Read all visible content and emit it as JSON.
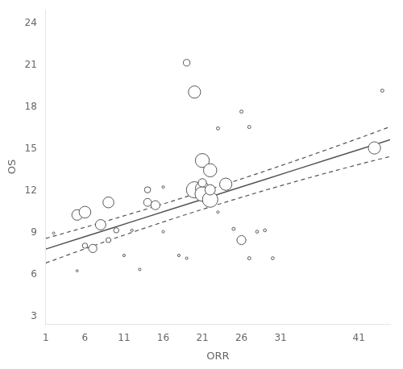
{
  "chart_data": {
    "type": "scatter",
    "xlabel": "ORR",
    "ylabel": "OS",
    "xlim": [
      1,
      45
    ],
    "ylim": [
      2.5,
      25
    ],
    "xticks": [
      1,
      6,
      11,
      16,
      21,
      26,
      31,
      41
    ],
    "yticks": [
      3,
      6,
      9,
      12,
      15,
      18,
      21,
      24
    ],
    "grid": false,
    "series": [
      {
        "type": "line",
        "line_style": "dashed",
        "color": "#555555",
        "x": [
          1,
          5,
          9,
          13,
          17,
          21,
          25,
          29,
          33,
          37,
          41,
          45
        ],
        "values": [
          8.6246,
          9.255,
          9.9046,
          10.5734,
          11.2614,
          11.9686,
          12.695,
          13.4406,
          14.2054,
          14.9894,
          15.7926,
          16.615
        ]
      },
      {
        "type": "line",
        "line_style": "dashed",
        "color": "#555555",
        "x": [
          1,
          5,
          9,
          13,
          17,
          21,
          25,
          29,
          33,
          37,
          41,
          45
        ],
        "values": [
          6.86142,
          7.6795,
          8.47262,
          9.24078,
          9.98398,
          10.70222,
          11.3955,
          12.06382,
          12.70718,
          13.32558,
          13.91902,
          14.4875
        ]
      },
      {
        "type": "line",
        "line_style": "solid",
        "color": "#555555",
        "x": [
          1,
          5,
          9,
          13,
          17,
          21,
          25,
          29,
          33,
          37,
          41,
          45
        ],
        "values": [
          7.858,
          8.57,
          9.282,
          9.994,
          10.706,
          11.418,
          12.13,
          12.842,
          13.554,
          14.266,
          14.978,
          15.69
        ]
      },
      {
        "type": "bubble",
        "marker": "hollow",
        "color": "#555555",
        "x": [
          2,
          5,
          5,
          6,
          6,
          7,
          8,
          9,
          9,
          10,
          11,
          12,
          13,
          14,
          14,
          15,
          16,
          16,
          18,
          19,
          19,
          20,
          20,
          21,
          21,
          21,
          21,
          22,
          22,
          22,
          23,
          23,
          24,
          25,
          26,
          26,
          27,
          27,
          28,
          29,
          30,
          43,
          44
        ],
        "values": [
          9.0,
          6.3,
          10.3,
          10.5,
          8.1,
          7.9,
          9.6,
          11.2,
          8.5,
          9.2,
          7.4,
          9.2,
          6.4,
          12.1,
          11.2,
          11.0,
          12.3,
          9.1,
          7.4,
          7.2,
          21.2,
          19.1,
          12.1,
          14.2,
          12.2,
          11.8,
          12.6,
          11.4,
          13.5,
          12.1,
          10.5,
          16.5,
          12.5,
          9.3,
          8.5,
          17.7,
          7.2,
          16.6,
          9.1,
          9.2,
          7.2,
          15.1,
          19.2
        ],
        "sizes": [
          4,
          4,
          90,
          110,
          22,
          55,
          85,
          95,
          20,
          22,
          5,
          5,
          5,
          30,
          50,
          65,
          5,
          5,
          5,
          5,
          35,
          120,
          210,
          155,
          150,
          170,
          55,
          190,
          140,
          85,
          5,
          8,
          120,
          8,
          65,
          8,
          8,
          8,
          7,
          7,
          7,
          120,
          8
        ]
      }
    ]
  }
}
